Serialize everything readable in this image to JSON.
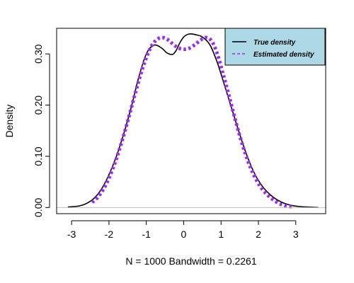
{
  "chart_data": {
    "type": "line",
    "title": "",
    "xlabel": "N = 1000   Bandwidth = 0.2261",
    "ylabel": "Density",
    "xlim": [
      -3.4,
      3.8
    ],
    "ylim": [
      -0.012,
      0.35
    ],
    "xticks": [
      "-3",
      "-2",
      "-1",
      "0",
      "1",
      "2",
      "3"
    ],
    "yticks": [
      "0.00",
      "0.10",
      "0.20",
      "0.30"
    ],
    "zero_line": true,
    "grid": false,
    "legend": {
      "position": "top-right",
      "background": "#add8e6",
      "entries": [
        "True density",
        "Estimated density"
      ]
    },
    "series": [
      {
        "name": "True density",
        "style": "solid line",
        "color": "#000000",
        "x": [
          -3.1,
          -2.8,
          -2.6,
          -2.4,
          -2.2,
          -2.0,
          -1.8,
          -1.6,
          -1.4,
          -1.2,
          -1.0,
          -0.8,
          -0.6,
          -0.45,
          -0.3,
          -0.2,
          -0.1,
          0.0,
          0.1,
          0.2,
          0.35,
          0.5,
          0.7,
          0.9,
          1.1,
          1.3,
          1.5,
          1.7,
          1.9,
          2.1,
          2.3,
          2.5,
          2.7,
          2.9,
          3.1,
          3.3,
          3.6
        ],
        "y": [
          0.001,
          0.003,
          0.008,
          0.018,
          0.036,
          0.064,
          0.1,
          0.145,
          0.197,
          0.255,
          0.3,
          0.317,
          0.312,
          0.302,
          0.299,
          0.307,
          0.322,
          0.333,
          0.338,
          0.339,
          0.337,
          0.333,
          0.318,
          0.283,
          0.237,
          0.19,
          0.143,
          0.1,
          0.066,
          0.042,
          0.026,
          0.015,
          0.008,
          0.004,
          0.002,
          0.001,
          0.0
        ]
      },
      {
        "name": "Estimated density",
        "style": "dashed line, thick",
        "color": "#9b30e0",
        "x": [
          -2.45,
          -2.3,
          -2.1,
          -1.9,
          -1.7,
          -1.5,
          -1.3,
          -1.1,
          -0.9,
          -0.75,
          -0.6,
          -0.45,
          -0.3,
          -0.15,
          0.0,
          0.15,
          0.3,
          0.45,
          0.6,
          0.75,
          0.9,
          1.05,
          1.2,
          1.35,
          1.5,
          1.65,
          1.8,
          1.95,
          2.1,
          2.25,
          2.4,
          2.55,
          2.7,
          2.85,
          2.95
        ],
        "y": [
          0.01,
          0.02,
          0.042,
          0.075,
          0.118,
          0.168,
          0.222,
          0.272,
          0.31,
          0.326,
          0.332,
          0.329,
          0.32,
          0.312,
          0.309,
          0.311,
          0.318,
          0.327,
          0.332,
          0.325,
          0.3,
          0.262,
          0.222,
          0.18,
          0.14,
          0.105,
          0.076,
          0.053,
          0.036,
          0.024,
          0.015,
          0.008,
          0.004,
          0.002,
          0.001
        ]
      }
    ]
  }
}
